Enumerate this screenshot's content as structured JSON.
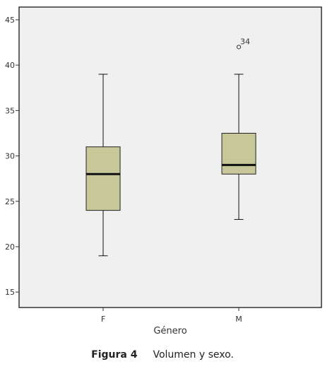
{
  "chart_data": {
    "type": "boxplot",
    "xlabel": "Género",
    "ylabel": "",
    "ylim": [
      13.3,
      46.4
    ],
    "yticks": [
      "15",
      "20",
      "25",
      "30",
      "35",
      "40",
      "45"
    ],
    "categories": [
      "F",
      "M"
    ],
    "boxes": [
      {
        "category": "F",
        "whisker_low": 19,
        "q1": 24,
        "median": 28,
        "q3": 31,
        "whisker_high": 39,
        "outliers": []
      },
      {
        "category": "M",
        "whisker_low": 23,
        "q1": 28,
        "median": 29,
        "q3": 32.5,
        "whisker_high": 39,
        "outliers": [
          {
            "value": 42,
            "label": "34"
          }
        ]
      }
    ],
    "colors": {
      "box_fill": "#c8c79a",
      "plot_bg": "#f0f0f0",
      "frame": "#333333",
      "median": "#111111"
    }
  },
  "caption": {
    "figure_label": "Figura 4",
    "text": "Volumen y sexo."
  }
}
